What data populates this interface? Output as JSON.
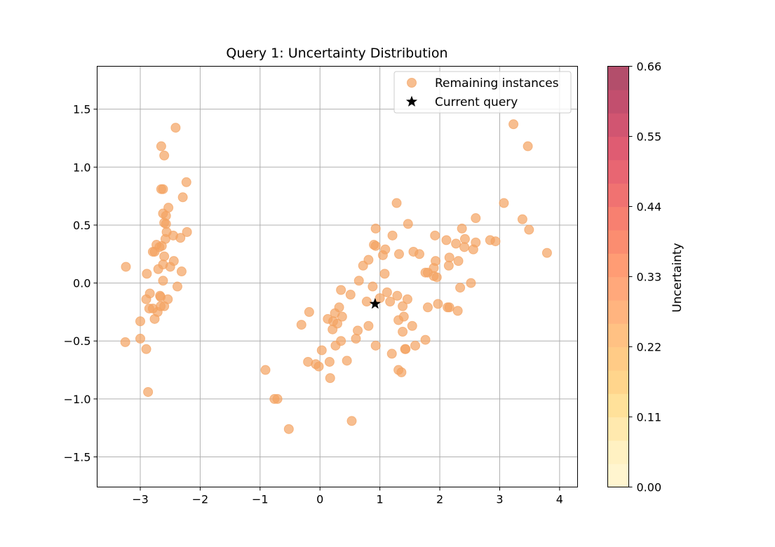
{
  "chart_data": {
    "type": "scatter",
    "title": "Query 1: Uncertainty Distribution",
    "xlabel": "",
    "ylabel": "",
    "xlim": [
      -3.72,
      4.3
    ],
    "ylim": [
      -1.76,
      1.87
    ],
    "xticks": [
      -3,
      -2,
      -1,
      0,
      1,
      2,
      3,
      4
    ],
    "xtick_labels": [
      "−3",
      "−2",
      "−1",
      "0",
      "1",
      "2",
      "3",
      "4"
    ],
    "yticks": [
      -1.5,
      -1.0,
      -0.5,
      0.0,
      0.5,
      1.0,
      1.5
    ],
    "ytick_labels": [
      "−1.5",
      "−1.0",
      "−0.5",
      "0.0",
      "0.5",
      "1.0",
      "1.5"
    ],
    "grid": true,
    "legend_position": "upper right",
    "series": [
      {
        "name": "Remaining instances",
        "marker": "circle",
        "color": "#f4a261",
        "points": [
          [
            -3.24,
            0.14
          ],
          [
            -3.25,
            -0.51
          ],
          [
            -3.0,
            -0.33
          ],
          [
            -3.0,
            -0.48
          ],
          [
            -2.9,
            -0.57
          ],
          [
            -2.87,
            -0.94
          ],
          [
            -2.89,
            0.08
          ],
          [
            -2.9,
            -0.14
          ],
          [
            -2.84,
            -0.09
          ],
          [
            -2.85,
            -0.22
          ],
          [
            -2.79,
            -0.22
          ],
          [
            -2.79,
            0.27
          ],
          [
            -2.76,
            -0.31
          ],
          [
            -2.76,
            0.27
          ],
          [
            -2.73,
            0.33
          ],
          [
            -2.71,
            -0.25
          ],
          [
            -2.7,
            0.12
          ],
          [
            -2.68,
            0.31
          ],
          [
            -2.67,
            -0.11
          ],
          [
            -2.66,
            -0.2
          ],
          [
            -2.64,
            0.32
          ],
          [
            -2.65,
            0.81
          ],
          [
            -2.65,
            1.18
          ],
          [
            -2.62,
            0.81
          ],
          [
            -2.62,
            0.6
          ],
          [
            -2.62,
            0.16
          ],
          [
            -2.62,
            0.02
          ],
          [
            -2.6,
            1.1
          ],
          [
            -2.6,
            0.52
          ],
          [
            -2.6,
            0.23
          ],
          [
            -2.6,
            -0.2
          ],
          [
            -2.58,
            0.38
          ],
          [
            -2.57,
            0.58
          ],
          [
            -2.57,
            0.51
          ],
          [
            -2.56,
            0.44
          ],
          [
            -2.53,
            0.65
          ],
          [
            -2.54,
            -0.14
          ],
          [
            -2.5,
            0.14
          ],
          [
            -2.45,
            0.41
          ],
          [
            -2.44,
            0.19
          ],
          [
            -2.41,
            1.34
          ],
          [
            -2.38,
            -0.03
          ],
          [
            -2.33,
            0.39
          ],
          [
            -2.31,
            0.1
          ],
          [
            -2.29,
            0.74
          ],
          [
            -2.23,
            0.87
          ],
          [
            -2.22,
            0.44
          ],
          [
            -2.66,
            -0.12
          ],
          [
            -0.91,
            -0.75
          ],
          [
            -0.76,
            -1.0
          ],
          [
            -0.71,
            -1.0
          ],
          [
            -0.52,
            -1.26
          ],
          [
            -0.31,
            -0.36
          ],
          [
            -0.2,
            -0.68
          ],
          [
            -0.18,
            -0.25
          ],
          [
            -0.07,
            -0.7
          ],
          [
            -0.02,
            -0.72
          ],
          [
            0.03,
            -0.58
          ],
          [
            0.13,
            -0.31
          ],
          [
            0.16,
            -0.68
          ],
          [
            0.17,
            -0.82
          ],
          [
            0.21,
            -0.4
          ],
          [
            0.22,
            -0.33
          ],
          [
            0.25,
            -0.26
          ],
          [
            0.26,
            -0.54
          ],
          [
            0.29,
            -0.35
          ],
          [
            0.32,
            -0.21
          ],
          [
            0.35,
            -0.5
          ],
          [
            0.35,
            -0.06
          ],
          [
            0.37,
            -0.29
          ],
          [
            0.45,
            -0.67
          ],
          [
            0.51,
            -0.1
          ],
          [
            0.53,
            -1.19
          ],
          [
            0.6,
            -0.48
          ],
          [
            0.63,
            -0.41
          ],
          [
            0.65,
            0.02
          ],
          [
            0.72,
            0.15
          ],
          [
            0.78,
            -0.16
          ],
          [
            0.81,
            0.2
          ],
          [
            0.81,
            -0.37
          ],
          [
            0.88,
            -0.03
          ],
          [
            0.9,
            0.33
          ],
          [
            0.93,
            0.47
          ],
          [
            0.93,
            0.32
          ],
          [
            0.93,
            -0.54
          ],
          [
            1.0,
            -0.13
          ],
          [
            1.05,
            0.24
          ],
          [
            1.08,
            0.08
          ],
          [
            1.09,
            0.29
          ],
          [
            1.12,
            -0.08
          ],
          [
            1.17,
            -0.16
          ],
          [
            1.2,
            -0.61
          ],
          [
            1.21,
            0.41
          ],
          [
            1.28,
            0.69
          ],
          [
            1.29,
            -0.11
          ],
          [
            1.31,
            -0.75
          ],
          [
            1.31,
            -0.32
          ],
          [
            1.32,
            0.25
          ],
          [
            1.36,
            -0.77
          ],
          [
            1.38,
            -0.2
          ],
          [
            1.38,
            -0.42
          ],
          [
            1.4,
            -0.29
          ],
          [
            1.42,
            -0.57
          ],
          [
            1.43,
            -0.57
          ],
          [
            1.46,
            -0.14
          ],
          [
            1.47,
            0.51
          ],
          [
            1.54,
            -0.37
          ],
          [
            1.56,
            0.27
          ],
          [
            1.59,
            -0.54
          ],
          [
            1.66,
            0.25
          ],
          [
            1.76,
            -0.49
          ],
          [
            1.76,
            0.09
          ],
          [
            1.8,
            -0.21
          ],
          [
            1.8,
            0.09
          ],
          [
            1.9,
            0.13
          ],
          [
            1.9,
            0.06
          ],
          [
            1.92,
            0.41
          ],
          [
            1.93,
            0.19
          ],
          [
            1.95,
            0.05
          ],
          [
            1.97,
            -0.18
          ],
          [
            2.11,
            0.37
          ],
          [
            2.13,
            -0.21
          ],
          [
            2.15,
            0.15
          ],
          [
            2.16,
            0.22
          ],
          [
            2.16,
            -0.21
          ],
          [
            2.27,
            0.34
          ],
          [
            2.3,
            -0.24
          ],
          [
            2.31,
            0.19
          ],
          [
            2.34,
            -0.04
          ],
          [
            2.37,
            0.47
          ],
          [
            2.41,
            0.31
          ],
          [
            2.42,
            0.38
          ],
          [
            2.52,
            0.0
          ],
          [
            2.56,
            0.29
          ],
          [
            2.6,
            0.35
          ],
          [
            2.6,
            0.56
          ],
          [
            2.84,
            0.37
          ],
          [
            2.93,
            0.36
          ],
          [
            3.07,
            0.69
          ],
          [
            3.23,
            1.37
          ],
          [
            3.38,
            0.55
          ],
          [
            3.47,
            1.18
          ],
          [
            3.49,
            0.46
          ],
          [
            3.79,
            0.26
          ]
        ]
      },
      {
        "name": "Current query",
        "marker": "star",
        "color": "#000000",
        "points": [
          [
            0.92,
            -0.18
          ]
        ]
      }
    ],
    "colorbar": {
      "label": "Uncertainty",
      "min": 0.0,
      "max": 0.66,
      "tick_values": [
        0.0,
        0.11,
        0.22,
        0.33,
        0.44,
        0.55,
        0.66
      ],
      "tick_labels": [
        "0.00",
        "0.11",
        "0.22",
        "0.33",
        "0.44",
        "0.55",
        "0.66"
      ],
      "colors": [
        "#fff5cf",
        "#fff1c2",
        "#ffe9ae",
        "#ffe19a",
        "#ffd58c",
        "#ffcb86",
        "#ffc183",
        "#ffb47f",
        "#ffa87b",
        "#ff9c74",
        "#fb8d70",
        "#f78070",
        "#f07271",
        "#e86672",
        "#df5c72",
        "#d15571",
        "#c24f6e",
        "#b34e6b"
      ]
    }
  }
}
